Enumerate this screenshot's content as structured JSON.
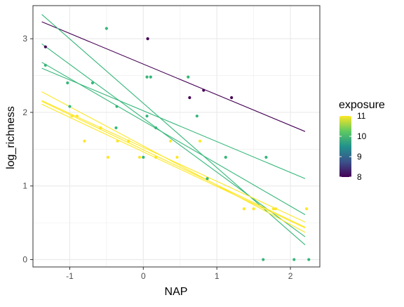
{
  "chart_data": {
    "type": "scatter",
    "xlabel": "NAP",
    "ylabel": "log_richness",
    "xlim": [
      -1.5,
      2.4
    ],
    "ylim": [
      -0.1,
      3.45
    ],
    "x_ticks": [
      -1,
      0,
      1,
      2
    ],
    "x_tick_labels": [
      "-1",
      "0",
      "1",
      "2"
    ],
    "y_ticks": [
      0,
      1,
      2,
      3
    ],
    "y_tick_labels": [
      "0",
      "1",
      "2",
      "3"
    ],
    "minor_gridlines": true,
    "legend": {
      "title": "exposure",
      "placement": "right",
      "type": "colorbar",
      "range": [
        8,
        11
      ],
      "ticks": [
        8,
        9,
        10,
        11
      ],
      "tick_labels": [
        "8",
        "9",
        "10",
        "11"
      ]
    },
    "colors": {
      "8": "#440154",
      "10": "#35b779",
      "11": "#fde725"
    },
    "points": [
      {
        "x": -1.33,
        "y": 2.89,
        "exposure": 8
      },
      {
        "x": 0.06,
        "y": 3.0,
        "exposure": 8
      },
      {
        "x": 0.63,
        "y": 2.2,
        "exposure": 8
      },
      {
        "x": 0.82,
        "y": 2.3,
        "exposure": 8
      },
      {
        "x": 1.2,
        "y": 2.2,
        "exposure": 8
      },
      {
        "x": -1.33,
        "y": 2.64,
        "exposure": 10
      },
      {
        "x": -1.03,
        "y": 2.4,
        "exposure": 10
      },
      {
        "x": -1.0,
        "y": 2.08,
        "exposure": 10
      },
      {
        "x": -0.69,
        "y": 2.4,
        "exposure": 10
      },
      {
        "x": -0.5,
        "y": 3.14,
        "exposure": 10
      },
      {
        "x": -0.36,
        "y": 2.08,
        "exposure": 10
      },
      {
        "x": -0.37,
        "y": 1.79,
        "exposure": 10
      },
      {
        "x": 0.05,
        "y": 2.48,
        "exposure": 10
      },
      {
        "x": 0.1,
        "y": 2.48,
        "exposure": 10
      },
      {
        "x": 0.05,
        "y": 1.95,
        "exposure": 10
      },
      {
        "x": 0.17,
        "y": 1.79,
        "exposure": 10
      },
      {
        "x": 0.61,
        "y": 2.48,
        "exposure": 10
      },
      {
        "x": 0.73,
        "y": 1.95,
        "exposure": 10
      },
      {
        "x": 1.12,
        "y": 1.39,
        "exposure": 10
      },
      {
        "x": 1.67,
        "y": 1.39,
        "exposure": 10
      },
      {
        "x": 0.0,
        "y": 1.39,
        "exposure": 10
      },
      {
        "x": 0.87,
        "y": 1.1,
        "exposure": 10
      },
      {
        "x": 1.63,
        "y": 0.0,
        "exposure": 10
      },
      {
        "x": 2.05,
        "y": 0.0,
        "exposure": 10
      },
      {
        "x": 2.25,
        "y": 0.0,
        "exposure": 10
      },
      {
        "x": -0.97,
        "y": 1.95,
        "exposure": 11
      },
      {
        "x": -0.9,
        "y": 1.95,
        "exposure": 11
      },
      {
        "x": -0.8,
        "y": 1.61,
        "exposure": 11
      },
      {
        "x": -0.58,
        "y": 1.79,
        "exposure": 11
      },
      {
        "x": -0.48,
        "y": 1.39,
        "exposure": 11
      },
      {
        "x": -0.35,
        "y": 1.61,
        "exposure": 11
      },
      {
        "x": -0.2,
        "y": 1.61,
        "exposure": 11
      },
      {
        "x": -0.05,
        "y": 1.39,
        "exposure": 11
      },
      {
        "x": 0.17,
        "y": 1.39,
        "exposure": 11
      },
      {
        "x": 0.37,
        "y": 1.61,
        "exposure": 11
      },
      {
        "x": 0.46,
        "y": 1.39,
        "exposure": 11
      },
      {
        "x": 0.77,
        "y": 1.61,
        "exposure": 11
      },
      {
        "x": 1.37,
        "y": 0.69,
        "exposure": 11
      },
      {
        "x": 1.5,
        "y": 0.69,
        "exposure": 11
      },
      {
        "x": 1.77,
        "y": 0.69,
        "exposure": 11
      },
      {
        "x": 1.8,
        "y": 0.69,
        "exposure": 11
      },
      {
        "x": 2.22,
        "y": 0.69,
        "exposure": 11
      }
    ],
    "fit_lines": [
      {
        "x": [
          -1.38,
          2.2
        ],
        "y": [
          3.23,
          1.74
        ],
        "exposure": 8
      },
      {
        "x": [
          -1.38,
          2.2
        ],
        "y": [
          3.33,
          0.2
        ],
        "exposure": 10
      },
      {
        "x": [
          -1.38,
          2.2
        ],
        "y": [
          2.93,
          0.31
        ],
        "exposure": 10
      },
      {
        "x": [
          -1.38,
          2.2
        ],
        "y": [
          2.68,
          0.61
        ],
        "exposure": 10
      },
      {
        "x": [
          -1.38,
          2.2
        ],
        "y": [
          2.6,
          1.1
        ],
        "exposure": 10
      },
      {
        "x": [
          -1.38,
          2.2
        ],
        "y": [
          2.28,
          0.37
        ],
        "exposure": 11
      },
      {
        "x": [
          -1.38,
          2.2
        ],
        "y": [
          2.16,
          0.51
        ],
        "exposure": 11
      },
      {
        "x": [
          -1.38,
          2.2
        ],
        "y": [
          2.15,
          0.44
        ],
        "exposure": 11
      },
      {
        "x": [
          -1.38,
          2.2
        ],
        "y": [
          2.11,
          0.43
        ],
        "exposure": 11
      }
    ]
  }
}
